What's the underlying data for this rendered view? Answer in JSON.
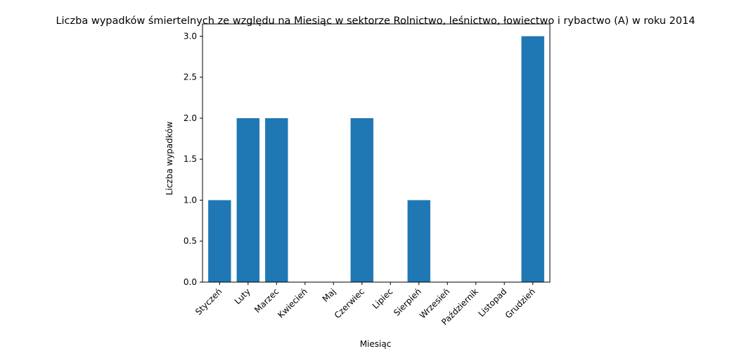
{
  "chart_data": {
    "type": "bar",
    "title": "Liczba wypadków śmiertelnych ze względu na Miesiąc w sektorze Rolnictwo, leśnictwo, łowiectwo i rybactwo (A) w roku 2014",
    "xlabel": "Miesiąc",
    "ylabel": "Liczba wypadków",
    "categories": [
      "Styczeń",
      "Luty",
      "Marzec",
      "Kwiecień",
      "Maj",
      "Czerwiec",
      "Lipiec",
      "Sierpień",
      "Wrzesień",
      "Październik",
      "Listopad",
      "Grudzień"
    ],
    "values": [
      1,
      2,
      2,
      0,
      0,
      2,
      0,
      1,
      0,
      0,
      0,
      3
    ],
    "ylim": [
      0,
      3.15
    ],
    "yticks": [
      0.0,
      0.5,
      1.0,
      1.5,
      2.0,
      2.5,
      3.0
    ],
    "ytick_labels": [
      "0.0",
      "0.5",
      "1.0",
      "1.5",
      "2.0",
      "2.5",
      "3.0"
    ],
    "grid": false,
    "bar_color": "#1f77b4"
  }
}
